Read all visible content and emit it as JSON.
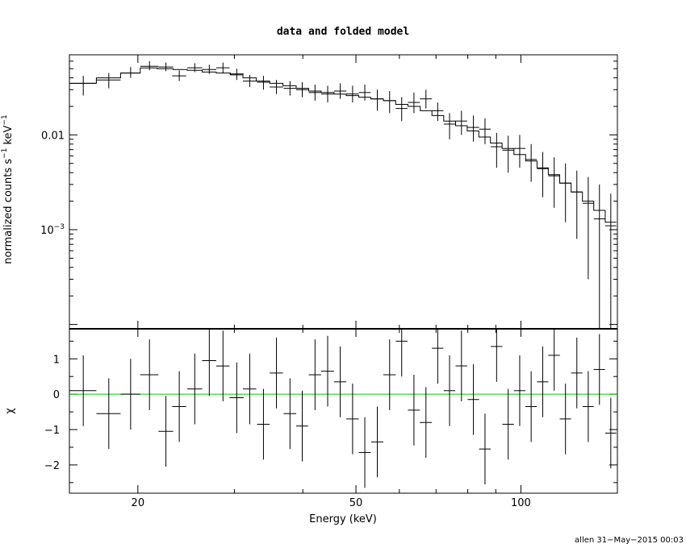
{
  "chart_data": [
    {
      "type": "scatter",
      "title": "data and folded model",
      "ylabel_base": "normalized counts s",
      "ylabel_exp1": "−1",
      "ylabel_mid": " keV",
      "ylabel_exp2": "−1",
      "xscale": "log",
      "yscale": "log",
      "xlim": [
        15,
        150
      ],
      "ylim": [
        9e-05,
        0.07
      ],
      "yticks": [
        {
          "value": 0.01,
          "label": "0.01"
        },
        {
          "value": 0.001,
          "label": "10",
          "exp": "−3"
        }
      ],
      "legend": "none",
      "series": [
        {
          "role": "data",
          "x": [
            15.9,
            17.7,
            19.4,
            21.0,
            22.5,
            23.8,
            25.4,
            27.0,
            28.6,
            30.3,
            32.0,
            33.9,
            35.8,
            37.9,
            39.9,
            42.1,
            44.4,
            46.8,
            49.3,
            51.9,
            54.7,
            57.6,
            60.6,
            63.8,
            67.1,
            70.5,
            74.1,
            77.9,
            81.9,
            86.0,
            90.3,
            94.8,
            99.5,
            104.4,
            109.6,
            115.0,
            120.6,
            126.5,
            132.7,
            139.1,
            145.9
          ],
          "xerr": [
            0.9,
            0.9,
            0.8,
            0.8,
            0.7,
            0.7,
            0.8,
            0.8,
            0.8,
            0.9,
            0.9,
            0.9,
            1.0,
            1.0,
            1.0,
            1.1,
            1.2,
            1.2,
            1.3,
            1.3,
            1.4,
            1.5,
            1.5,
            1.6,
            1.7,
            1.7,
            1.8,
            1.9,
            2.0,
            2.1,
            2.2,
            2.3,
            2.4,
            2.5,
            2.6,
            2.8,
            2.9,
            3.0,
            3.1,
            3.3,
            3.4
          ],
          "y": [
            0.035,
            0.038,
            0.045,
            0.053,
            0.052,
            0.042,
            0.051,
            0.049,
            0.051,
            0.044,
            0.037,
            0.036,
            0.032,
            0.031,
            0.03,
            0.028,
            0.027,
            0.029,
            0.027,
            0.028,
            0.024,
            0.023,
            0.019,
            0.022,
            0.024,
            0.018,
            0.013,
            0.014,
            0.012,
            0.0115,
            0.0075,
            0.0069,
            0.0072,
            0.0055,
            0.0044,
            0.0037,
            0.0031,
            0.0025,
            0.0019,
            0.0013,
            0.0011
          ],
          "ylo": [
            0.026,
            0.031,
            0.04,
            0.048,
            0.047,
            0.037,
            0.046,
            0.044,
            0.045,
            0.038,
            0.032,
            0.03,
            0.027,
            0.026,
            0.025,
            0.023,
            0.022,
            0.024,
            0.022,
            0.023,
            0.018,
            0.017,
            0.014,
            0.017,
            0.019,
            0.014,
            0.009,
            0.01,
            0.0085,
            0.008,
            0.0045,
            0.004,
            0.0045,
            0.0032,
            0.0022,
            0.0017,
            0.0012,
            0.0008,
            0.0003,
            9e-05,
            9e-05
          ],
          "yhi": [
            0.042,
            0.045,
            0.052,
            0.06,
            0.058,
            0.048,
            0.057,
            0.055,
            0.058,
            0.05,
            0.043,
            0.042,
            0.038,
            0.037,
            0.036,
            0.034,
            0.033,
            0.035,
            0.033,
            0.034,
            0.03,
            0.029,
            0.025,
            0.028,
            0.03,
            0.022,
            0.017,
            0.018,
            0.016,
            0.015,
            0.0105,
            0.0098,
            0.01,
            0.008,
            0.0066,
            0.0058,
            0.005,
            0.0042,
            0.0036,
            0.003,
            0.0024
          ]
        },
        {
          "role": "model",
          "edges": [
            15.0,
            16.8,
            18.6,
            20.2,
            21.7,
            23.2,
            24.6,
            26.2,
            27.8,
            29.5,
            31.1,
            32.9,
            34.8,
            36.8,
            38.9,
            41.0,
            43.2,
            45.6,
            48.0,
            50.6,
            53.2,
            56.1,
            59.1,
            62.2,
            65.5,
            68.8,
            72.3,
            76.0,
            79.8,
            83.8,
            88.0,
            92.4,
            97.1,
            102.0,
            107.0,
            112.2,
            117.7,
            123.5,
            129.5,
            135.8,
            142.5,
            149.3
          ],
          "y": [
            0.035,
            0.04,
            0.045,
            0.051,
            0.05,
            0.049,
            0.048,
            0.046,
            0.045,
            0.043,
            0.04,
            0.037,
            0.035,
            0.033,
            0.031,
            0.029,
            0.028,
            0.027,
            0.026,
            0.025,
            0.024,
            0.023,
            0.021,
            0.02,
            0.018,
            0.016,
            0.014,
            0.0125,
            0.011,
            0.0095,
            0.0082,
            0.0072,
            0.0062,
            0.0053,
            0.0045,
            0.0038,
            0.0031,
            0.0025,
            0.002,
            0.0016,
            0.0012
          ]
        }
      ]
    },
    {
      "type": "scatter",
      "ylabel": "χ",
      "xlabel": "Energy (keV)",
      "xscale": "log",
      "xlim": [
        15,
        150
      ],
      "ylim": [
        -2.8,
        1.85
      ],
      "yticks": [
        {
          "value": 1,
          "label": "1"
        },
        {
          "value": 0,
          "label": "0"
        },
        {
          "value": -1,
          "label": "−1"
        },
        {
          "value": -2,
          "label": "−2"
        }
      ],
      "xticks": [
        {
          "value": 20,
          "label": "20"
        },
        {
          "value": 50,
          "label": "50"
        },
        {
          "value": 100,
          "label": "100"
        }
      ],
      "reference_line": {
        "y": 0,
        "color": "#00cc00"
      },
      "series": [
        {
          "role": "residuals",
          "x": [
            15.9,
            17.7,
            19.4,
            21.0,
            22.5,
            23.8,
            25.4,
            27.0,
            28.6,
            30.3,
            32.0,
            33.9,
            35.8,
            37.9,
            39.9,
            42.1,
            44.4,
            46.8,
            49.3,
            51.9,
            54.7,
            57.6,
            60.6,
            63.8,
            67.1,
            70.5,
            74.1,
            77.9,
            81.9,
            86.0,
            90.3,
            94.8,
            99.5,
            104.4,
            109.6,
            115.0,
            120.6,
            126.5,
            132.7,
            139.1,
            145.9
          ],
          "xerr": [
            0.9,
            0.9,
            0.8,
            0.8,
            0.7,
            0.7,
            0.8,
            0.8,
            0.8,
            0.9,
            0.9,
            0.9,
            1.0,
            1.0,
            1.0,
            1.1,
            1.2,
            1.2,
            1.3,
            1.3,
            1.4,
            1.5,
            1.5,
            1.6,
            1.7,
            1.7,
            1.8,
            1.9,
            2.0,
            2.1,
            2.2,
            2.3,
            2.4,
            2.5,
            2.6,
            2.8,
            2.9,
            3.0,
            3.1,
            3.3,
            3.4
          ],
          "y": [
            0.1,
            -0.55,
            0.0,
            0.55,
            -1.05,
            -0.35,
            0.15,
            0.95,
            0.8,
            -0.1,
            0.15,
            -0.85,
            0.6,
            -0.55,
            -0.9,
            0.55,
            0.65,
            0.35,
            -0.7,
            -1.65,
            -1.35,
            0.55,
            1.5,
            -0.45,
            -0.8,
            1.3,
            0.1,
            0.8,
            -0.15,
            -1.55,
            1.35,
            -0.85,
            0.1,
            -0.35,
            0.35,
            1.1,
            -0.7,
            0.6,
            -0.35,
            0.7,
            -1.1
          ],
          "err": [
            1.0,
            1.0,
            1.0,
            1.0,
            1.0,
            1.0,
            1.0,
            1.0,
            1.0,
            1.0,
            1.0,
            1.0,
            1.0,
            1.0,
            1.0,
            1.0,
            1.0,
            1.0,
            1.0,
            1.0,
            1.0,
            1.0,
            1.0,
            1.0,
            1.0,
            1.0,
            1.0,
            1.0,
            1.0,
            1.0,
            1.0,
            1.0,
            1.0,
            1.0,
            1.0,
            1.0,
            1.0,
            1.0,
            1.0,
            1.0,
            1.0
          ]
        }
      ]
    }
  ],
  "footer": "allen 31−May−2015 00:03"
}
